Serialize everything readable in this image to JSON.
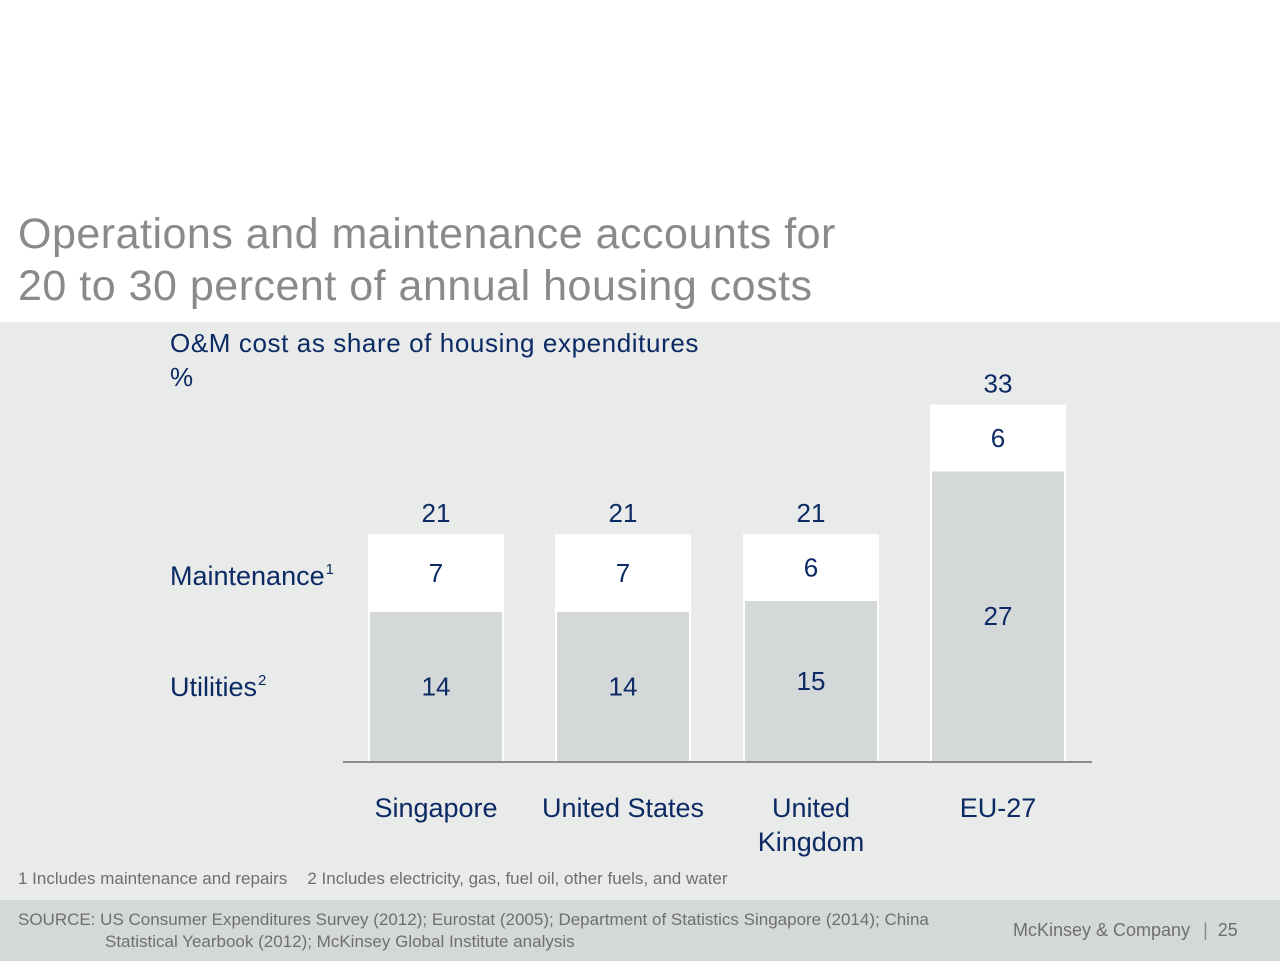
{
  "title": {
    "line1": "Operations and maintenance accounts for",
    "line2": "20 to 30 percent of annual housing costs"
  },
  "subtitle": {
    "line1": "O&M cost as share of housing expenditures",
    "line2": "%"
  },
  "row_labels": {
    "maintenance": "Maintenance",
    "maintenance_note": "1",
    "utilities": "Utilities",
    "utilities_note": "2"
  },
  "chart_data": {
    "type": "bar",
    "stacked": true,
    "categories": [
      [
        "Singapore"
      ],
      [
        "United States"
      ],
      [
        "United",
        "Kingdom"
      ],
      [
        "EU-27"
      ]
    ],
    "series": [
      {
        "name": "Utilities",
        "values": [
          14,
          14,
          15,
          27
        ],
        "color": "#d5d8d8"
      },
      {
        "name": "Maintenance",
        "values": [
          7,
          7,
          6,
          6
        ],
        "color": "#ffffff"
      }
    ],
    "totals": [
      "21",
      "21",
      "21",
      "33"
    ],
    "ylim": [
      0,
      33
    ],
    "grid": false
  },
  "footnotes": [
    "1 Includes maintenance and repairs",
    "2 Includes electricity, gas, fuel oil, other fuels, and water"
  ],
  "source": {
    "line1": "SOURCE: US Consumer Expenditures Survey (2012); Eurostat (2005); Department of Statistics Singapore (2014); China",
    "line2": "Statistical Yearbook (2012); McKinsey Global Institute analysis"
  },
  "brand": "McKinsey & Company",
  "page_number": "25",
  "colors": {
    "text_navy": "#0c2a63",
    "utilities_fill": "#d5d8d8",
    "maintenance_fill": "#ffffff",
    "panel_bg": "#e9eaea"
  }
}
